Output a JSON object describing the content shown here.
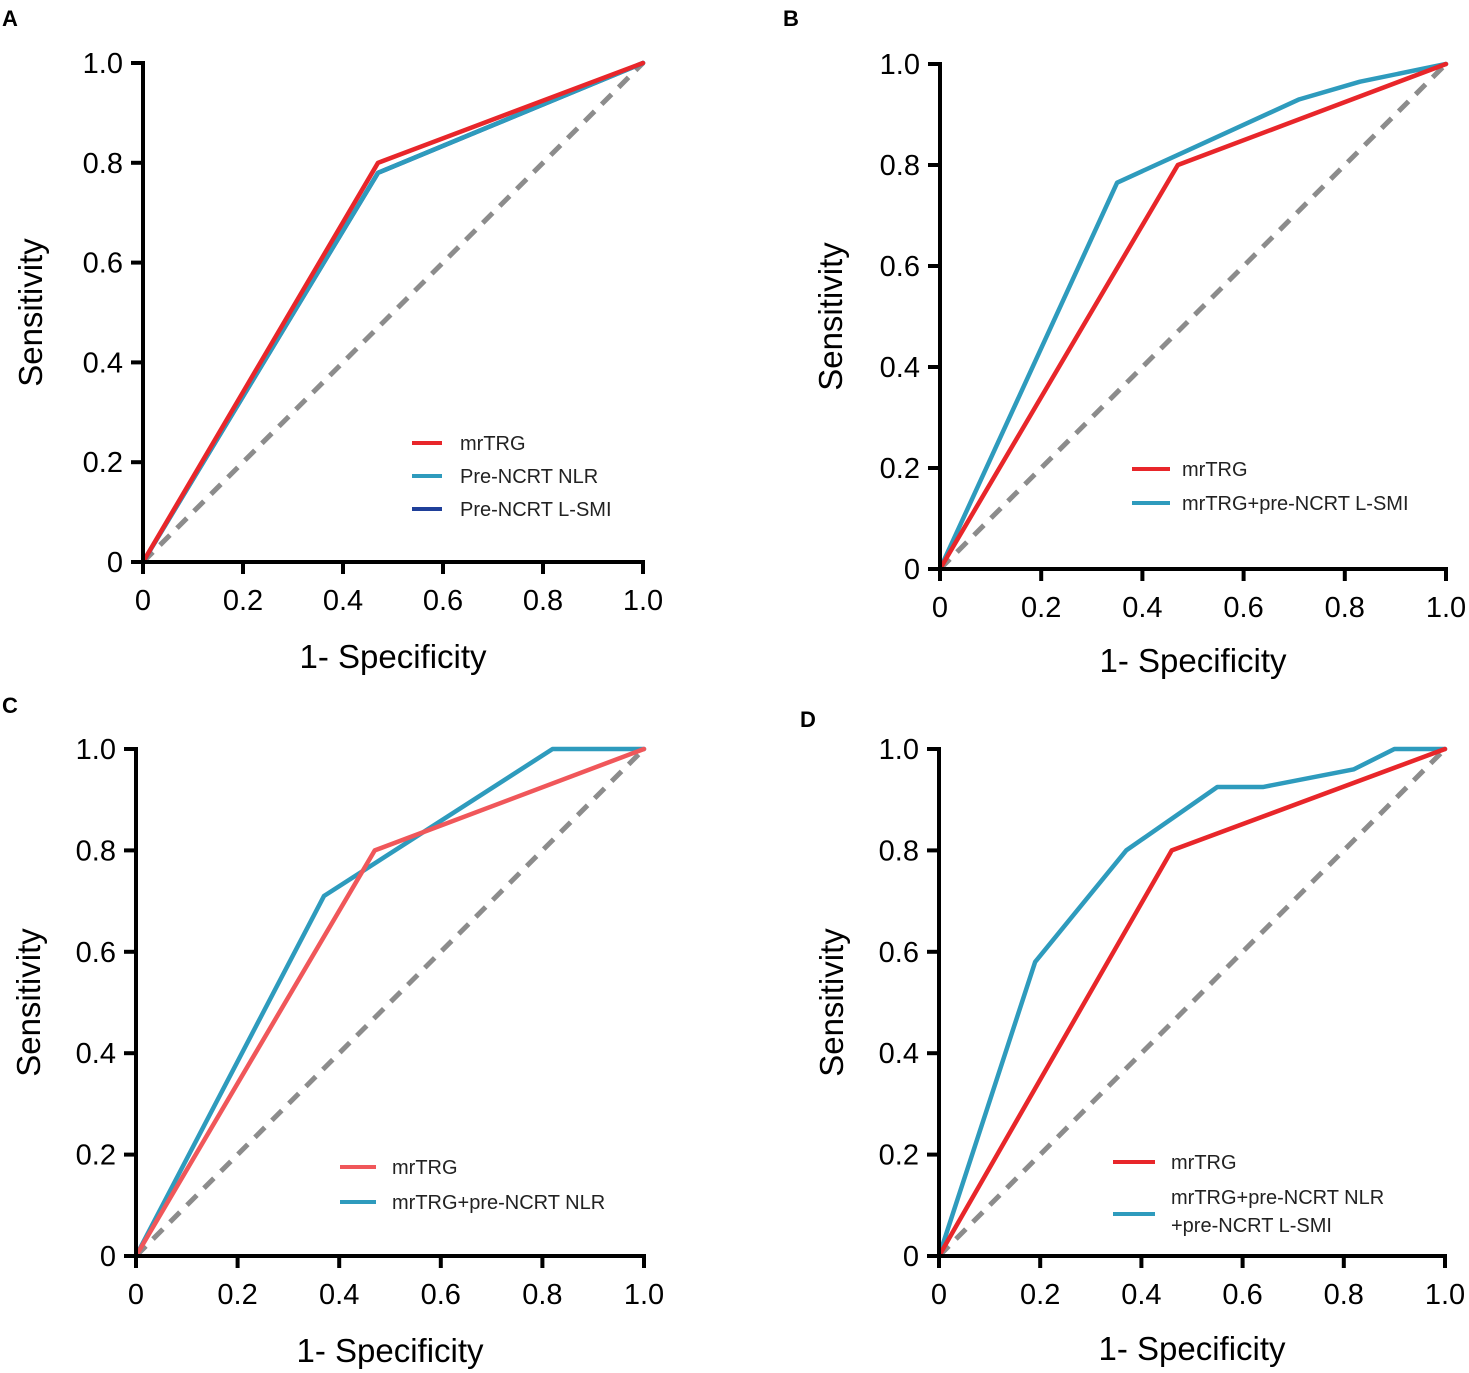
{
  "chart_data": [
    {
      "type": "line",
      "panel": "A",
      "xlabel": "1- Specificity",
      "ylabel": "Sensitivity",
      "xlim": [
        0,
        1
      ],
      "ylim": [
        0,
        1
      ],
      "xticks": [
        "0",
        "0.2",
        "0.4",
        "0.6",
        "0.8",
        "1.0"
      ],
      "yticks": [
        "0",
        "0.2",
        "0.4",
        "0.6",
        "0.8",
        "1.0"
      ],
      "legend_position": "bottom-right",
      "series": [
        {
          "name": "Pre-NCRT L-SMI",
          "color": "#1f3f99",
          "x": [
            0,
            0.47,
            1
          ],
          "y": [
            0,
            0.78,
            1
          ]
        },
        {
          "name": "Pre-NCRT NLR",
          "color": "#2e9bbd",
          "x": [
            0,
            0.47,
            1
          ],
          "y": [
            0,
            0.78,
            1
          ]
        },
        {
          "name": "mrTRG",
          "color": "#e8262a",
          "x": [
            0,
            0.47,
            1
          ],
          "y": [
            0,
            0.8,
            1
          ]
        }
      ],
      "legend": [
        "mrTRG",
        "Pre-NCRT NLR",
        "Pre-NCRT L-SMI"
      ],
      "reference_line": {
        "x": [
          0,
          1
        ],
        "y": [
          0,
          1
        ],
        "color": "#8c8c8c",
        "style": "dashed"
      }
    },
    {
      "type": "line",
      "panel": "B",
      "xlabel": "1- Specificity",
      "ylabel": "Sensitivity",
      "xlim": [
        0,
        1
      ],
      "ylim": [
        0,
        1
      ],
      "xticks": [
        "0",
        "0.2",
        "0.4",
        "0.6",
        "0.8",
        "1.0"
      ],
      "yticks": [
        "0",
        "0.2",
        "0.4",
        "0.6",
        "0.8",
        "1.0"
      ],
      "legend_position": "bottom-right",
      "series": [
        {
          "name": "mrTRG+pre-NCRT L-SMI",
          "color": "#2e9bbd",
          "x": [
            0,
            0.35,
            0.47,
            0.71,
            0.83,
            1
          ],
          "y": [
            0,
            0.765,
            0.82,
            0.93,
            0.965,
            1
          ]
        },
        {
          "name": "mrTRG",
          "color": "#e8262a",
          "x": [
            0,
            0.47,
            1
          ],
          "y": [
            0,
            0.8,
            1
          ]
        }
      ],
      "legend": [
        "mrTRG",
        "mrTRG+pre-NCRT L-SMI"
      ],
      "reference_line": {
        "x": [
          0,
          1
        ],
        "y": [
          0,
          1
        ],
        "color": "#8c8c8c",
        "style": "dashed"
      }
    },
    {
      "type": "line",
      "panel": "C",
      "xlabel": "1- Specificity",
      "ylabel": "Sensitivity",
      "xlim": [
        0,
        1
      ],
      "ylim": [
        0,
        1
      ],
      "xticks": [
        "0",
        "0.2",
        "0.4",
        "0.6",
        "0.8",
        "1.0"
      ],
      "yticks": [
        "0",
        "0.2",
        "0.4",
        "0.6",
        "0.8",
        "1.0"
      ],
      "legend_position": "bottom-right",
      "series": [
        {
          "name": "mrTRG+pre-NCRT NLR",
          "color": "#2e9bbd",
          "x": [
            0,
            0.37,
            0.82,
            1
          ],
          "y": [
            0,
            0.71,
            1,
            1
          ]
        },
        {
          "name": "mrTRG",
          "color": "#f0575a",
          "x": [
            0,
            0.47,
            1
          ],
          "y": [
            0,
            0.8,
            1
          ]
        }
      ],
      "legend": [
        "mrTRG",
        "mrTRG+pre-NCRT NLR"
      ],
      "reference_line": {
        "x": [
          0,
          1
        ],
        "y": [
          0,
          1
        ],
        "color": "#8c8c8c",
        "style": "dashed"
      }
    },
    {
      "type": "line",
      "panel": "D",
      "xlabel": "1- Specificity",
      "ylabel": "Sensitivity",
      "xlim": [
        0,
        1
      ],
      "ylim": [
        0,
        1
      ],
      "xticks": [
        "0",
        "0.2",
        "0.4",
        "0.6",
        "0.8",
        "1.0"
      ],
      "yticks": [
        "0",
        "0.2",
        "0.4",
        "0.6",
        "0.8",
        "1.0"
      ],
      "legend_position": "bottom-right",
      "series": [
        {
          "name": "mrTRG+pre-NCRT NLR\n+pre-NCRT L-SMI",
          "color": "#2e9bbd",
          "x": [
            0,
            0.19,
            0.37,
            0.55,
            0.64,
            0.82,
            0.9,
            1
          ],
          "y": [
            0,
            0.58,
            0.8,
            0.925,
            0.925,
            0.96,
            1,
            1
          ]
        },
        {
          "name": "mrTRG",
          "color": "#e8262a",
          "x": [
            0,
            0.46,
            1
          ],
          "y": [
            0,
            0.8,
            1
          ]
        }
      ],
      "legend": [
        "mrTRG",
        "mrTRG+pre-NCRT NLR",
        "+pre-NCRT L-SMI"
      ],
      "reference_line": {
        "x": [
          0,
          1
        ],
        "y": [
          0,
          1
        ],
        "color": "#8c8c8c",
        "style": "dashed"
      }
    }
  ]
}
